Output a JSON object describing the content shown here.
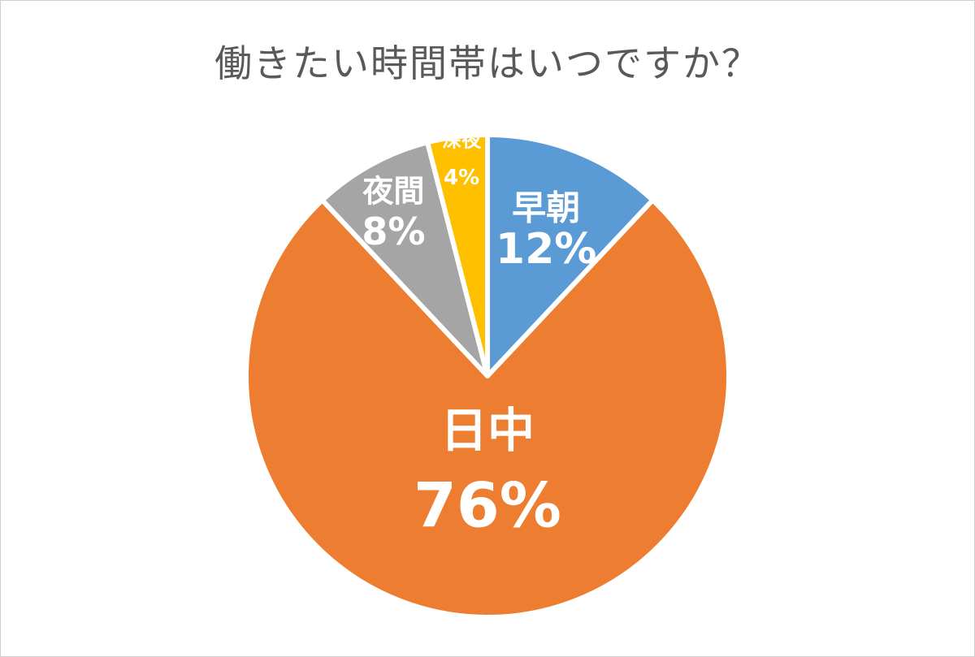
{
  "chart_data": {
    "type": "pie",
    "title": "働きたい時間帯はいつですか？",
    "slices": [
      {
        "name": "早朝",
        "value": 12,
        "label": "12%",
        "color": "#5B9BD5"
      },
      {
        "name": "日中",
        "value": 76,
        "label": "76%",
        "color": "#ED7D31"
      },
      {
        "name": "夜間",
        "value": 8,
        "label": "8%",
        "color": "#A5A5A5"
      },
      {
        "name": "深夜",
        "value": 4,
        "label": "4%",
        "color": "#FFC000"
      }
    ],
    "start": "12 o'clock",
    "direction": "clockwise"
  }
}
